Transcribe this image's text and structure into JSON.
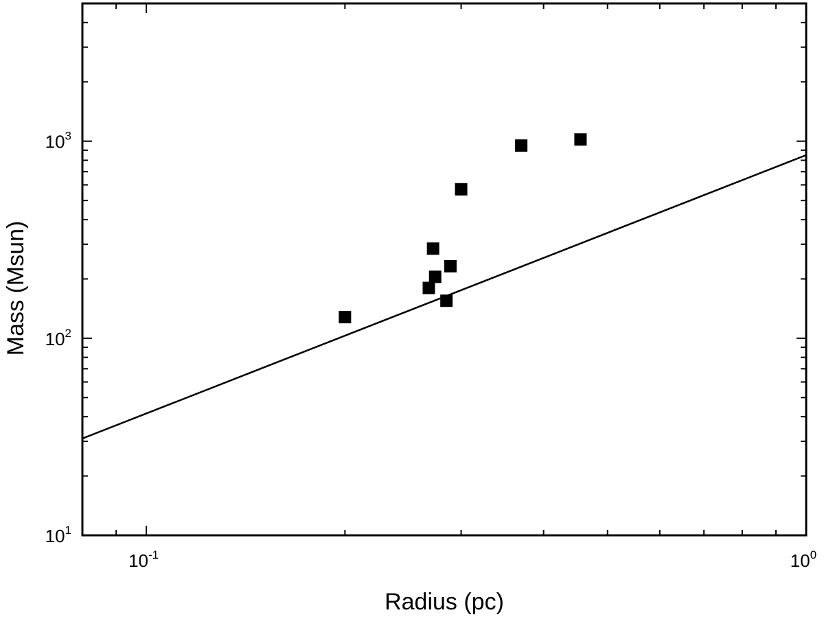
{
  "chart_data": {
    "type": "scatter",
    "title": "",
    "xlabel": "Radius (pc)",
    "ylabel": "Mass (Msun)",
    "x_scale": "log",
    "y_scale": "log",
    "xlim": [
      0.08,
      1.0
    ],
    "ylim": [
      10,
      5000
    ],
    "x_ticks": [
      {
        "base": "10",
        "exp": "-1",
        "value": 0.1
      },
      {
        "base": "10",
        "exp": "0",
        "value": 1
      }
    ],
    "y_ticks": [
      {
        "base": "10",
        "exp": "1",
        "value": 10
      },
      {
        "base": "10",
        "exp": "2",
        "value": 100
      },
      {
        "base": "10",
        "exp": "3",
        "value": 1000
      }
    ],
    "grid": false,
    "legend": false,
    "marker": "square",
    "color": "#000000",
    "points": [
      {
        "x": 0.2,
        "y": 128
      },
      {
        "x": 0.268,
        "y": 180
      },
      {
        "x": 0.272,
        "y": 285
      },
      {
        "x": 0.274,
        "y": 205
      },
      {
        "x": 0.285,
        "y": 155
      },
      {
        "x": 0.289,
        "y": 232
      },
      {
        "x": 0.3,
        "y": 570
      },
      {
        "x": 0.37,
        "y": 950
      },
      {
        "x": 0.455,
        "y": 1020
      }
    ],
    "lines": [
      {
        "x": [
          0.08,
          1.0
        ],
        "y": [
          31,
          850
        ]
      }
    ]
  }
}
